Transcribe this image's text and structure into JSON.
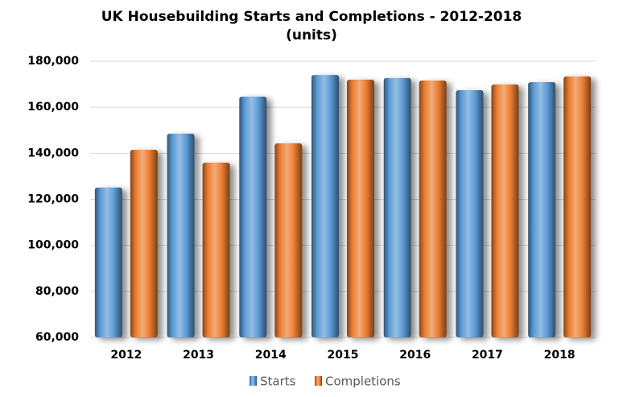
{
  "chart_data": {
    "type": "bar",
    "title": "UK Housebuilding Starts and Completions - 2012-2018",
    "subtitle": "(units)",
    "categories": [
      "2012",
      "2013",
      "2014",
      "2015",
      "2016",
      "2017",
      "2018"
    ],
    "series": [
      {
        "name": "Starts",
        "color": "#5b9bd5",
        "values": [
          125100,
          148500,
          164600,
          174000,
          172700,
          167400,
          170900
        ]
      },
      {
        "name": "Completions",
        "color": "#ed7d31",
        "values": [
          141500,
          135900,
          144300,
          172000,
          171600,
          169900,
          173400
        ]
      }
    ],
    "ylim": [
      60000,
      180000
    ],
    "yticks": [
      {
        "value": 60000,
        "label": "60,000"
      },
      {
        "value": 80000,
        "label": "80,000"
      },
      {
        "value": 100000,
        "label": "100,000"
      },
      {
        "value": 120000,
        "label": "120,000"
      },
      {
        "value": 140000,
        "label": "140,000"
      },
      {
        "value": 160000,
        "label": "160,000"
      },
      {
        "value": 180000,
        "label": "180,000"
      }
    ],
    "grid": true,
    "legend": "bottom"
  }
}
